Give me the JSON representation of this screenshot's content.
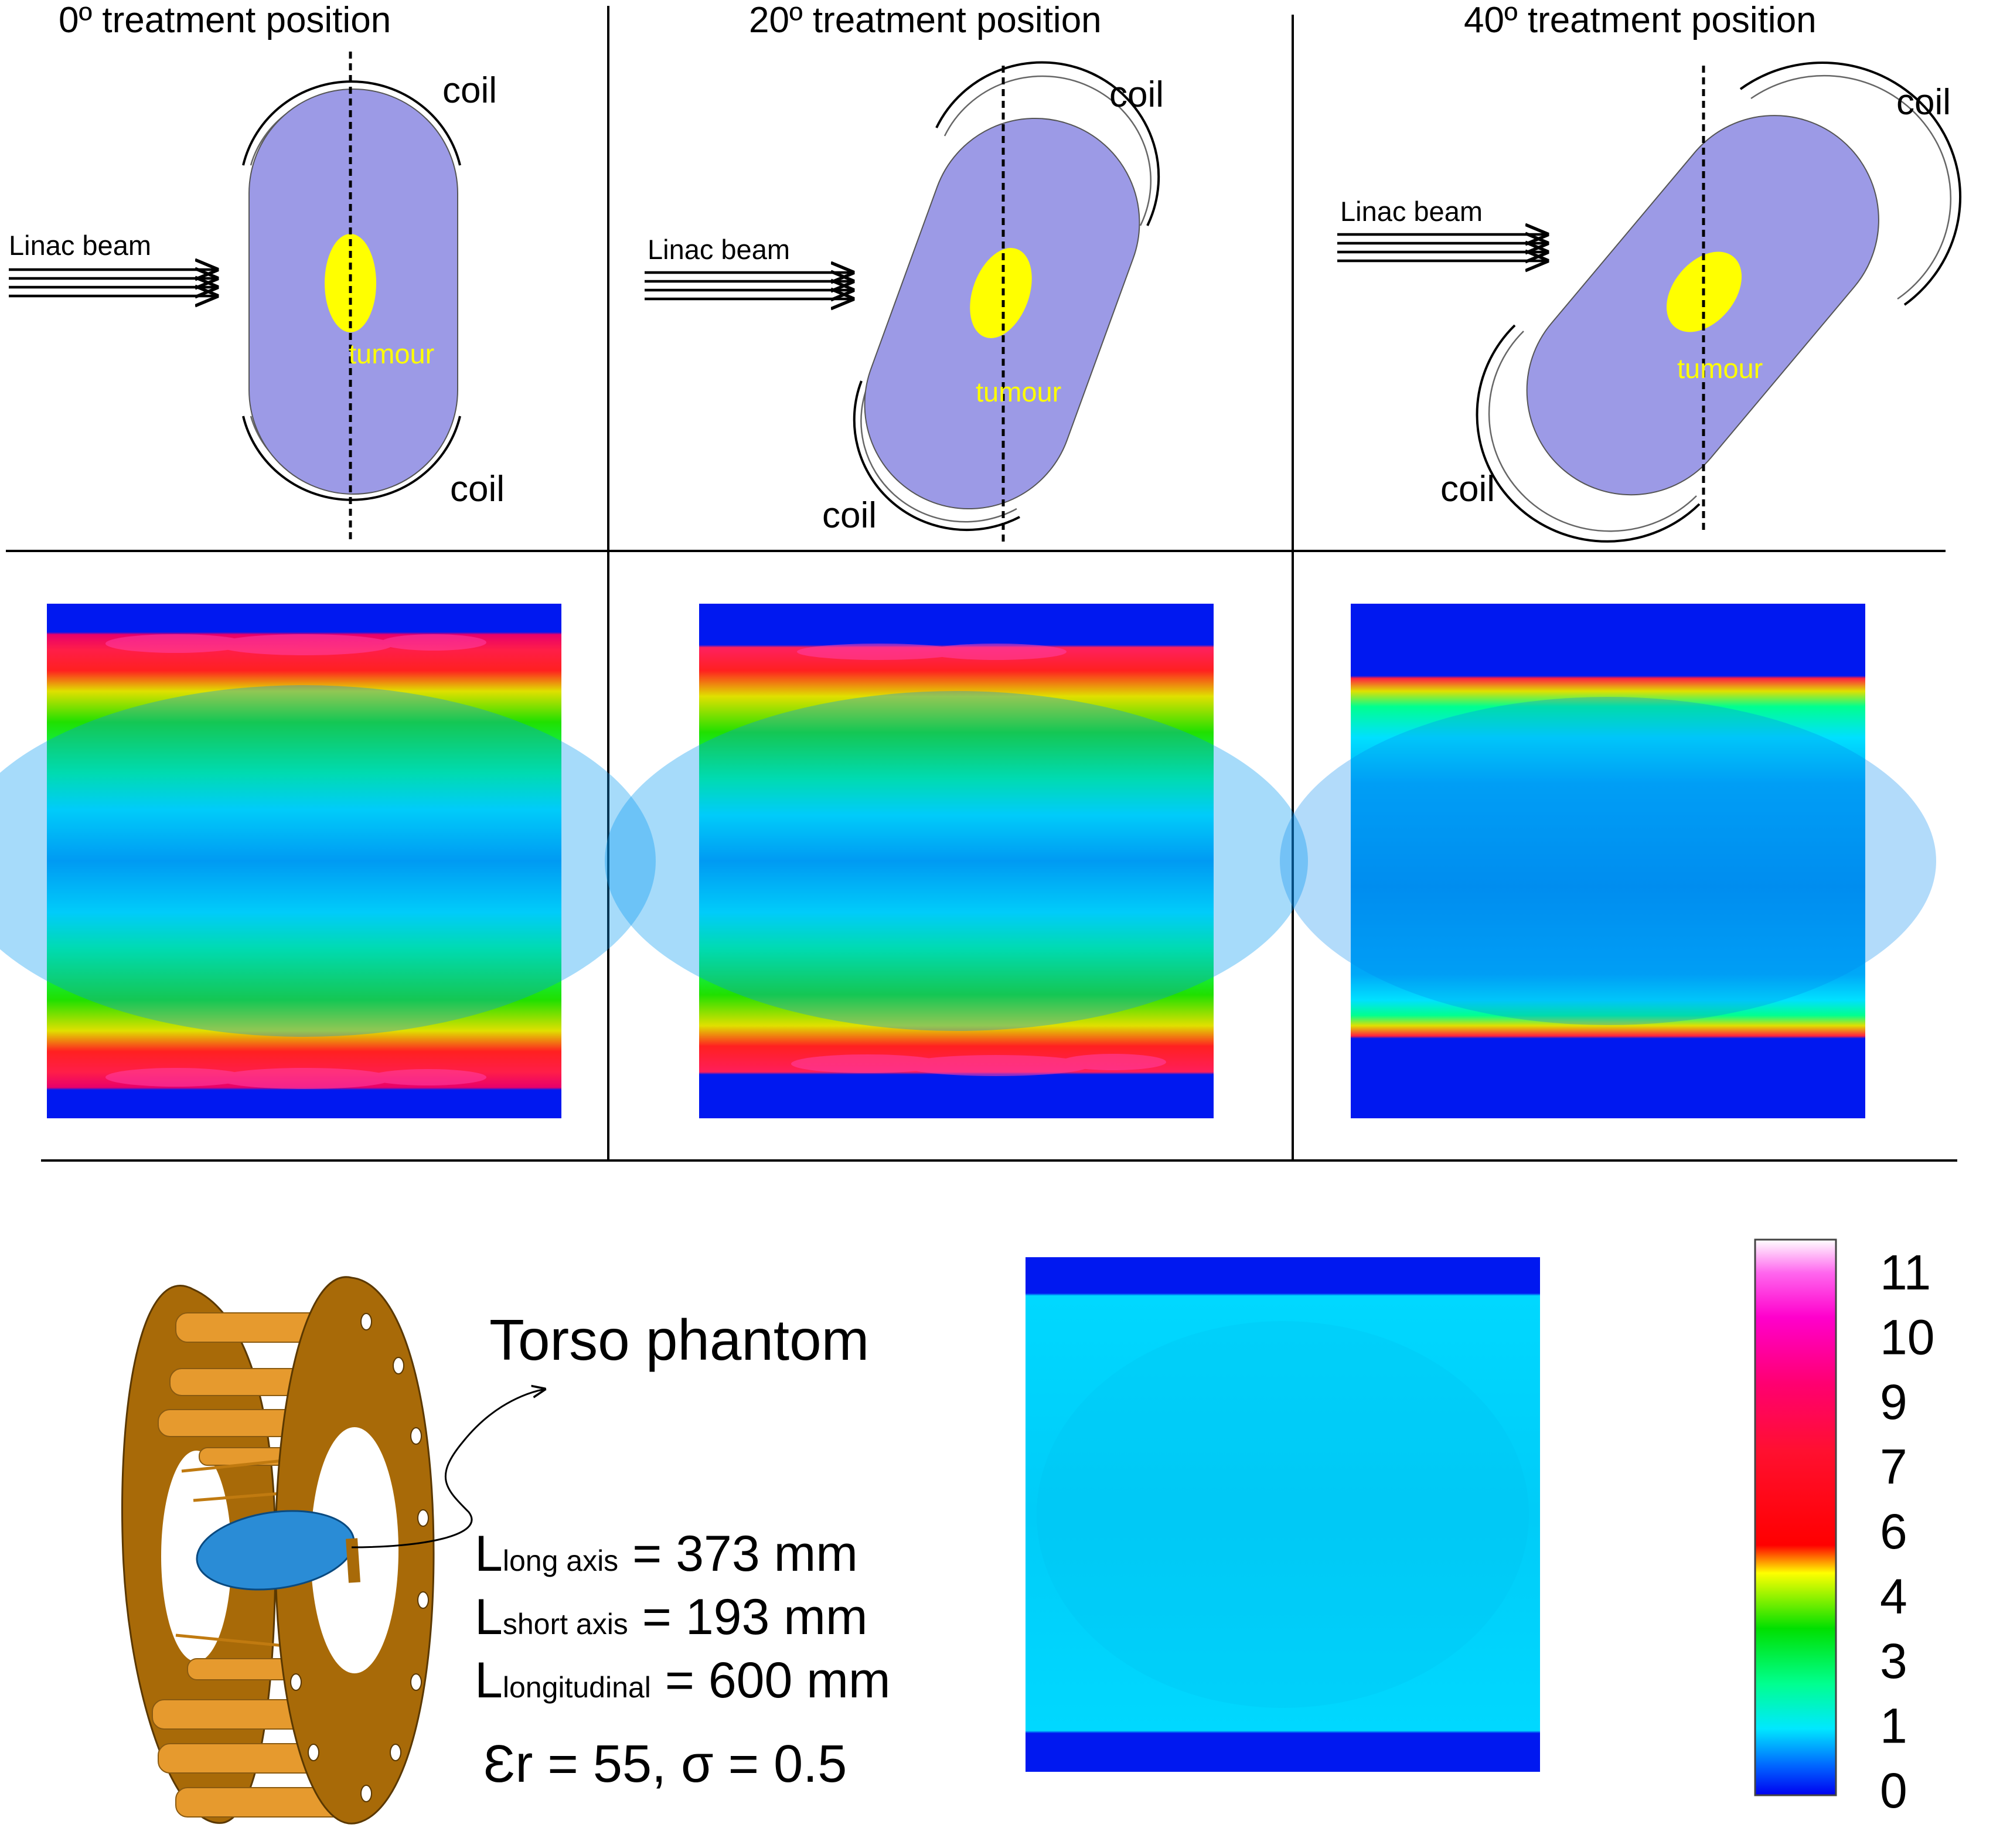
{
  "panels": [
    {
      "title": "0º treatment position",
      "coil_top": "coil",
      "coil_bottom": "coil",
      "beam": "Linac beam",
      "tumour": "tumour"
    },
    {
      "title": "20º treatment position",
      "coil_top": "coil",
      "coil_bottom": "coil",
      "beam": "Linac beam",
      "tumour": "tumour"
    },
    {
      "title": "40º treatment position",
      "coil_top": "coil",
      "coil_bottom": "coil",
      "beam": "Linac beam",
      "tumour": "tumour"
    }
  ],
  "phantom": {
    "title": "Torso phantom",
    "params": [
      {
        "L": "L",
        "sub": "long axis",
        "value": " = 373 mm"
      },
      {
        "L": "L",
        "sub": "short axis",
        "value": " = 193 mm"
      },
      {
        "L": "L",
        "sub": "longitudinal",
        "value": " = 600 mm"
      }
    ],
    "material": "Ɛr = 55, σ = 0.5"
  },
  "colorbar": {
    "labels": [
      "11",
      "10",
      "9",
      "7",
      "6",
      "4",
      "3",
      "1",
      "0"
    ]
  },
  "colors": {
    "body": "#9c9ae6",
    "tumour": "#ffff00",
    "frame": "#a86a08",
    "rod": "#e69a2e",
    "ellipse": "#2a8cd6"
  }
}
